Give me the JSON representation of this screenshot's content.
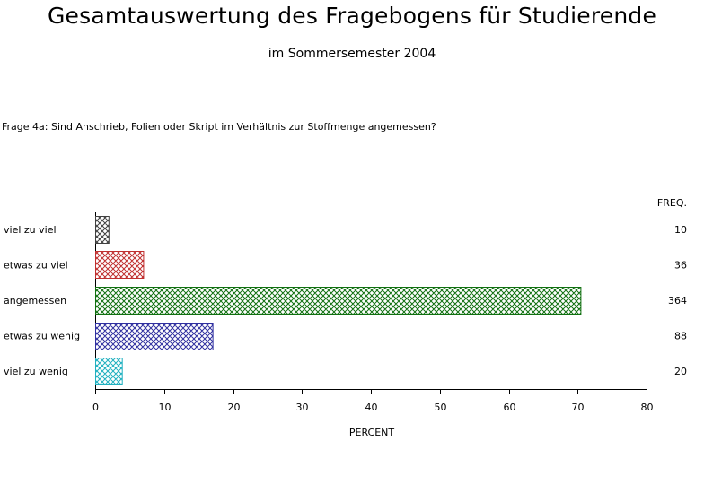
{
  "header": {
    "title": "Gesamtauswertung des Fragebogens für Studierende",
    "subtitle": "im Sommersemester 2004"
  },
  "question": "Frage 4a: Sind Anschrieb, Folien oder Skript im Verhältnis zur Stoffmenge angemessen?",
  "chart_data": {
    "type": "bar",
    "orientation": "horizontal",
    "categories": [
      "viel zu viel",
      "etwas zu viel",
      "angemessen",
      "etwas zu wenig",
      "viel zu wenig"
    ],
    "values": [
      1.93,
      6.96,
      70.41,
      17.02,
      3.87
    ],
    "freq_header": "FREQ.",
    "freq": [
      "10",
      "36",
      "364",
      "88",
      "20"
    ],
    "xlabel": "PERCENT",
    "xlim": [
      0,
      80
    ],
    "xticks": [
      "0",
      "10",
      "20",
      "30",
      "40",
      "50",
      "60",
      "70",
      "80"
    ],
    "pattern": "crosshatch",
    "colors": {
      "viel zu viel": {
        "stroke": "#404040",
        "fill": "#b0b0b0"
      },
      "etwas zu viel": {
        "stroke": "#c03030",
        "fill": "#f0b0b0"
      },
      "angemessen": {
        "stroke": "#107010",
        "fill": "#a0e0a0"
      },
      "etwas zu wenig": {
        "stroke": "#3030a0",
        "fill": "#b0b0f0"
      },
      "viel zu wenig": {
        "stroke": "#20b0c0",
        "fill": "#b0f0f0"
      }
    }
  }
}
